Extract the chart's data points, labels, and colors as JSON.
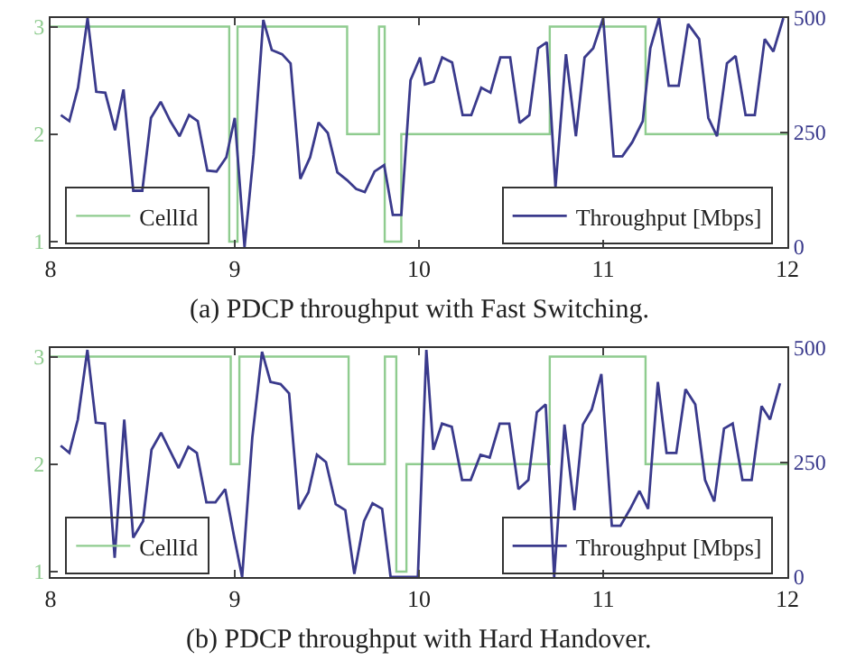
{
  "chart_data": [
    {
      "type": "line",
      "annotations": [
        "(a) PDCP throughput with Fast Switching."
      ],
      "xlim": [
        8,
        12
      ],
      "xticks": [
        8,
        9,
        10,
        11,
        12
      ],
      "ylim": [
        0.95,
        3.08
      ],
      "yticks": [
        1,
        2,
        3
      ],
      "y2lim": [
        0,
        500
      ],
      "y2ticks": [
        0,
        250,
        500
      ],
      "legend": "bottom",
      "marker": "none",
      "line_style": "solid",
      "grid": false,
      "series": [
        {
          "name": "CellId",
          "type": "step",
          "color": "#8fcc8f",
          "x": [
            8,
            8.97,
            9.015,
            9.61,
            9.783,
            9.814,
            9.904,
            10.71,
            11.23,
            12
          ],
          "values": [
            3,
            1,
            3,
            2,
            3,
            1,
            2,
            3,
            2,
            2
          ]
        },
        {
          "name": "Throughput [Mbps]",
          "type": "line",
          "axis": "y2",
          "color": "#3a3a8c",
          "x": [
            8.056,
            8.102,
            8.149,
            8.201,
            8.248,
            8.297,
            8.35,
            8.396,
            8.449,
            8.498,
            8.545,
            8.598,
            8.65,
            8.7,
            8.752,
            8.799,
            8.851,
            8.901,
            8.954,
            9.0,
            9.053,
            9.102,
            9.155,
            9.201,
            9.257,
            9.303,
            9.356,
            9.409,
            9.455,
            9.505,
            9.557,
            9.61,
            9.659,
            9.706,
            9.759,
            9.811,
            9.858,
            9.904,
            9.954,
            10.006,
            10.032,
            10.079,
            10.126,
            10.18,
            10.237,
            10.284,
            10.338,
            10.388,
            10.442,
            10.495,
            10.546,
            10.599,
            10.647,
            10.694,
            10.741,
            10.798,
            10.852,
            10.899,
            10.946,
            11.0,
            11.057,
            11.104,
            11.158,
            11.215,
            11.256,
            11.303,
            11.356,
            11.41,
            11.461,
            11.521,
            11.571,
            11.618,
            11.672,
            11.719,
            11.773,
            11.823,
            11.877,
            11.924,
            11.978
          ],
          "values": [
            288,
            275,
            348,
            500,
            339,
            337,
            255,
            344,
            123,
            123,
            282,
            317,
            275,
            242,
            288,
            275,
            167,
            165,
            196,
            282,
            0,
            202,
            496,
            430,
            421,
            401,
            149,
            196,
            272,
            249,
            163,
            146,
            127,
            120,
            165,
            179,
            70,
            70,
            364,
            414,
            355,
            361,
            414,
            403,
            288,
            288,
            348,
            337,
            414,
            414,
            271,
            288,
            434,
            447,
            130,
            421,
            242,
            414,
            434,
            500,
            198,
            198,
            229,
            275,
            434,
            500,
            352,
            352,
            487,
            454,
            282,
            242,
            401,
            417,
            288,
            288,
            454,
            427,
            500
          ]
        }
      ]
    },
    {
      "type": "line",
      "annotations": [
        "(b) PDCP throughput with Hard Handover."
      ],
      "xlim": [
        8,
        12
      ],
      "xticks": [
        8,
        9,
        10,
        11,
        12
      ],
      "ylim": [
        0.95,
        3.08
      ],
      "yticks": [
        1,
        2,
        3
      ],
      "y2lim": [
        0,
        500
      ],
      "y2ticks": [
        0,
        250,
        500
      ],
      "legend": "bottom",
      "marker": "none",
      "line_style": "solid",
      "grid": false,
      "series": [
        {
          "name": "CellId",
          "type": "step",
          "color": "#8fcc8f",
          "x": [
            8,
            8.978,
            9.025,
            9.618,
            9.815,
            9.877,
            9.932,
            10.71,
            11.23,
            12
          ],
          "values": [
            3,
            2,
            3,
            2,
            3,
            1,
            2,
            3,
            2,
            2
          ]
        },
        {
          "name": "Throughput [Mbps]",
          "type": "line",
          "axis": "y2",
          "color": "#3a3a8c",
          "x": [
            8.055,
            8.102,
            8.148,
            8.2,
            8.246,
            8.295,
            8.348,
            8.4,
            8.449,
            8.502,
            8.548,
            8.6,
            8.646,
            8.695,
            8.748,
            8.794,
            8.846,
            8.895,
            8.948,
            8.994,
            9.04,
            9.095,
            9.148,
            9.194,
            9.249,
            9.295,
            9.348,
            9.4,
            9.446,
            9.495,
            9.548,
            9.6,
            9.649,
            9.702,
            9.748,
            9.8,
            9.846,
            9.994,
            10.04,
            10.078,
            10.125,
            10.178,
            10.234,
            10.281,
            10.334,
            10.384,
            10.438,
            10.49,
            10.54,
            10.594,
            10.64,
            10.688,
            10.734,
            10.79,
            10.844,
            10.89,
            10.938,
            10.99,
            11.047,
            11.094,
            11.147,
            11.197,
            11.244,
            11.297,
            11.344,
            11.397,
            11.447,
            11.5,
            11.553,
            11.603,
            11.656,
            11.703,
            11.756,
            11.806,
            11.86,
            11.906,
            11.96
          ],
          "values": [
            287,
            271,
            344,
            496,
            337,
            335,
            42,
            344,
            86,
            122,
            278,
            315,
            278,
            238,
            284,
            271,
            163,
            163,
            192,
            93,
            0,
            304,
            492,
            426,
            421,
            401,
            148,
            185,
            267,
            251,
            159,
            146,
            7,
            122,
            161,
            149,
            0,
            0,
            496,
            278,
            335,
            328,
            212,
            212,
            267,
            261,
            335,
            335,
            192,
            212,
            360,
            377,
            0,
            333,
            146,
            333,
            366,
            443,
            112,
            112,
            149,
            188,
            149,
            426,
            271,
            271,
            410,
            377,
            212,
            165,
            324,
            335,
            212,
            212,
            373,
            344,
            423
          ]
        }
      ]
    }
  ]
}
